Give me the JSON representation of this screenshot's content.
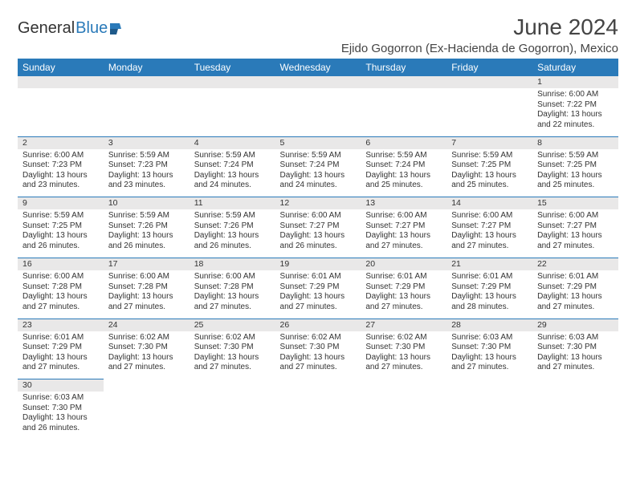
{
  "brand": {
    "general": "General",
    "blue": "Blue"
  },
  "title": "June 2024",
  "location": "Ejido Gogorron (Ex-Hacienda de Gogorron), Mexico",
  "colors": {
    "header_blue": "#2a7ab9",
    "grey_band": "#e9e8e8",
    "text": "#333333",
    "background": "#ffffff"
  },
  "font": {
    "family": "Arial",
    "header_size_pt": 12,
    "cell_size_pt": 10,
    "title_size_pt": 28
  },
  "weekday_labels": [
    "Sunday",
    "Monday",
    "Tuesday",
    "Wednesday",
    "Thursday",
    "Friday",
    "Saturday"
  ],
  "structure": "calendar-grid",
  "weeks": [
    [
      null,
      null,
      null,
      null,
      null,
      null,
      {
        "day": "1",
        "sunrise": "Sunrise: 6:00 AM",
        "sunset": "Sunset: 7:22 PM",
        "daylight": "Daylight: 13 hours and 22 minutes."
      }
    ],
    [
      {
        "day": "2",
        "sunrise": "Sunrise: 6:00 AM",
        "sunset": "Sunset: 7:23 PM",
        "daylight": "Daylight: 13 hours and 23 minutes."
      },
      {
        "day": "3",
        "sunrise": "Sunrise: 5:59 AM",
        "sunset": "Sunset: 7:23 PM",
        "daylight": "Daylight: 13 hours and 23 minutes."
      },
      {
        "day": "4",
        "sunrise": "Sunrise: 5:59 AM",
        "sunset": "Sunset: 7:24 PM",
        "daylight": "Daylight: 13 hours and 24 minutes."
      },
      {
        "day": "5",
        "sunrise": "Sunrise: 5:59 AM",
        "sunset": "Sunset: 7:24 PM",
        "daylight": "Daylight: 13 hours and 24 minutes."
      },
      {
        "day": "6",
        "sunrise": "Sunrise: 5:59 AM",
        "sunset": "Sunset: 7:24 PM",
        "daylight": "Daylight: 13 hours and 25 minutes."
      },
      {
        "day": "7",
        "sunrise": "Sunrise: 5:59 AM",
        "sunset": "Sunset: 7:25 PM",
        "daylight": "Daylight: 13 hours and 25 minutes."
      },
      {
        "day": "8",
        "sunrise": "Sunrise: 5:59 AM",
        "sunset": "Sunset: 7:25 PM",
        "daylight": "Daylight: 13 hours and 25 minutes."
      }
    ],
    [
      {
        "day": "9",
        "sunrise": "Sunrise: 5:59 AM",
        "sunset": "Sunset: 7:25 PM",
        "daylight": "Daylight: 13 hours and 26 minutes."
      },
      {
        "day": "10",
        "sunrise": "Sunrise: 5:59 AM",
        "sunset": "Sunset: 7:26 PM",
        "daylight": "Daylight: 13 hours and 26 minutes."
      },
      {
        "day": "11",
        "sunrise": "Sunrise: 5:59 AM",
        "sunset": "Sunset: 7:26 PM",
        "daylight": "Daylight: 13 hours and 26 minutes."
      },
      {
        "day": "12",
        "sunrise": "Sunrise: 6:00 AM",
        "sunset": "Sunset: 7:27 PM",
        "daylight": "Daylight: 13 hours and 26 minutes."
      },
      {
        "day": "13",
        "sunrise": "Sunrise: 6:00 AM",
        "sunset": "Sunset: 7:27 PM",
        "daylight": "Daylight: 13 hours and 27 minutes."
      },
      {
        "day": "14",
        "sunrise": "Sunrise: 6:00 AM",
        "sunset": "Sunset: 7:27 PM",
        "daylight": "Daylight: 13 hours and 27 minutes."
      },
      {
        "day": "15",
        "sunrise": "Sunrise: 6:00 AM",
        "sunset": "Sunset: 7:27 PM",
        "daylight": "Daylight: 13 hours and 27 minutes."
      }
    ],
    [
      {
        "day": "16",
        "sunrise": "Sunrise: 6:00 AM",
        "sunset": "Sunset: 7:28 PM",
        "daylight": "Daylight: 13 hours and 27 minutes."
      },
      {
        "day": "17",
        "sunrise": "Sunrise: 6:00 AM",
        "sunset": "Sunset: 7:28 PM",
        "daylight": "Daylight: 13 hours and 27 minutes."
      },
      {
        "day": "18",
        "sunrise": "Sunrise: 6:00 AM",
        "sunset": "Sunset: 7:28 PM",
        "daylight": "Daylight: 13 hours and 27 minutes."
      },
      {
        "day": "19",
        "sunrise": "Sunrise: 6:01 AM",
        "sunset": "Sunset: 7:29 PM",
        "daylight": "Daylight: 13 hours and 27 minutes."
      },
      {
        "day": "20",
        "sunrise": "Sunrise: 6:01 AM",
        "sunset": "Sunset: 7:29 PM",
        "daylight": "Daylight: 13 hours and 27 minutes."
      },
      {
        "day": "21",
        "sunrise": "Sunrise: 6:01 AM",
        "sunset": "Sunset: 7:29 PM",
        "daylight": "Daylight: 13 hours and 28 minutes."
      },
      {
        "day": "22",
        "sunrise": "Sunrise: 6:01 AM",
        "sunset": "Sunset: 7:29 PM",
        "daylight": "Daylight: 13 hours and 27 minutes."
      }
    ],
    [
      {
        "day": "23",
        "sunrise": "Sunrise: 6:01 AM",
        "sunset": "Sunset: 7:29 PM",
        "daylight": "Daylight: 13 hours and 27 minutes."
      },
      {
        "day": "24",
        "sunrise": "Sunrise: 6:02 AM",
        "sunset": "Sunset: 7:30 PM",
        "daylight": "Daylight: 13 hours and 27 minutes."
      },
      {
        "day": "25",
        "sunrise": "Sunrise: 6:02 AM",
        "sunset": "Sunset: 7:30 PM",
        "daylight": "Daylight: 13 hours and 27 minutes."
      },
      {
        "day": "26",
        "sunrise": "Sunrise: 6:02 AM",
        "sunset": "Sunset: 7:30 PM",
        "daylight": "Daylight: 13 hours and 27 minutes."
      },
      {
        "day": "27",
        "sunrise": "Sunrise: 6:02 AM",
        "sunset": "Sunset: 7:30 PM",
        "daylight": "Daylight: 13 hours and 27 minutes."
      },
      {
        "day": "28",
        "sunrise": "Sunrise: 6:03 AM",
        "sunset": "Sunset: 7:30 PM",
        "daylight": "Daylight: 13 hours and 27 minutes."
      },
      {
        "day": "29",
        "sunrise": "Sunrise: 6:03 AM",
        "sunset": "Sunset: 7:30 PM",
        "daylight": "Daylight: 13 hours and 27 minutes."
      }
    ],
    [
      {
        "day": "30",
        "sunrise": "Sunrise: 6:03 AM",
        "sunset": "Sunset: 7:30 PM",
        "daylight": "Daylight: 13 hours and 26 minutes."
      },
      null,
      null,
      null,
      null,
      null,
      null
    ]
  ]
}
